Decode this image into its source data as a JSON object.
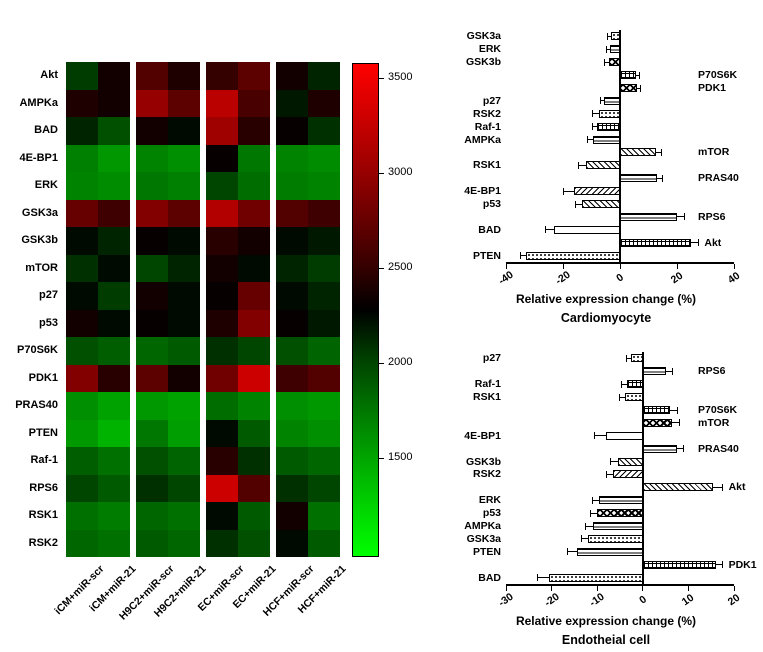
{
  "colors": {
    "background": "#ffffff",
    "axis": "#000000",
    "heat_low": "#2bd424",
    "heat_mid": "#000000",
    "heat_high": "#ff2a12"
  },
  "chart_data": [
    {
      "type": "heatmap",
      "rows": [
        "Akt",
        "AMPKa",
        "BAD",
        "4E-BP1",
        "ERK",
        "GSK3a",
        "GSK3b",
        "mTOR",
        "p27",
        "p53",
        "P70S6K",
        "PDK1",
        "PRAS40",
        "PTEN",
        "Raf-1",
        "RPS6",
        "RSK1",
        "RSK2"
      ],
      "columns": [
        "iCM+miR-scr",
        "iCM+miR-21",
        "H9C2+miR-scr",
        "H9C2+miR-21",
        "EC+miR-scr",
        "EC+miR-21",
        "HCF+miR-scr",
        "HCF+miR-21"
      ],
      "values": [
        [
          2050,
          2350,
          2650,
          2400,
          2500,
          2700,
          2350,
          2150
        ],
        [
          2400,
          2350,
          3000,
          2700,
          3200,
          2600,
          2200,
          2400
        ],
        [
          2150,
          1950,
          2350,
          2250,
          3050,
          2450,
          2300,
          2100
        ],
        [
          1700,
          1580,
          1680,
          1620,
          2300,
          1750,
          1680,
          1640
        ],
        [
          1680,
          1640,
          1750,
          1700,
          2000,
          1800,
          1720,
          1680
        ],
        [
          2750,
          2550,
          2900,
          2700,
          3150,
          2800,
          2650,
          2550
        ],
        [
          2250,
          2150,
          2300,
          2250,
          2450,
          2350,
          2250,
          2200
        ],
        [
          2100,
          2250,
          2000,
          2150,
          2350,
          2250,
          2150,
          2050
        ],
        [
          2250,
          2050,
          2350,
          2250,
          2300,
          2750,
          2250,
          2150
        ],
        [
          2350,
          2250,
          2300,
          2250,
          2400,
          2900,
          2300,
          2200
        ],
        [
          1950,
          1880,
          1830,
          1900,
          2100,
          2000,
          1950,
          1850
        ],
        [
          2900,
          2450,
          2700,
          2350,
          2800,
          3300,
          2550,
          2650
        ],
        [
          1620,
          1520,
          1570,
          1520,
          1800,
          1680,
          1620,
          1570
        ],
        [
          1560,
          1420,
          1750,
          1540,
          2250,
          1900,
          1680,
          1620
        ],
        [
          1880,
          1780,
          1950,
          1850,
          2450,
          2100,
          1900,
          1830
        ],
        [
          2000,
          1900,
          2100,
          2000,
          3300,
          2650,
          2100,
          2000
        ],
        [
          1780,
          1720,
          1830,
          1780,
          2250,
          1900,
          2350,
          1780
        ],
        [
          1830,
          1780,
          1900,
          1830,
          2100,
          1950,
          2250,
          1900
        ]
      ],
      "colorbar": {
        "min": 980,
        "max": 3580,
        "ticks": [
          3500,
          3000,
          2500,
          2000,
          1500
        ]
      }
    },
    {
      "type": "bar",
      "orientation": "horizontal",
      "title": "Cardiomyocyte",
      "xlabel": "Relative expression change (%)",
      "xmin": -40,
      "xmax": 40,
      "xticks": [
        -40,
        -20,
        0,
        20,
        40
      ],
      "bars": [
        {
          "label": "GSK3a",
          "value": -3,
          "err": 1.5,
          "pattern": "dots"
        },
        {
          "label": "ERK",
          "value": -3.5,
          "err": 1.2,
          "pattern": "hlines"
        },
        {
          "label": "GSK3b",
          "value": -4,
          "err": 1.5,
          "pattern": "checker"
        },
        {
          "label": "P70S6K",
          "value": 5.5,
          "err": 1.5,
          "pattern": "cross"
        },
        {
          "label": "PDK1",
          "value": 6,
          "err": 1.2,
          "pattern": "checker"
        },
        {
          "label": "p27",
          "value": -5.5,
          "err": 1.5,
          "pattern": "hlines"
        },
        {
          "label": "RSK2",
          "value": -7.5,
          "err": 2,
          "pattern": "dots"
        },
        {
          "label": "Raf-1",
          "value": -8,
          "err": 1.5,
          "pattern": "cross"
        },
        {
          "label": "AMPKa",
          "value": -9.5,
          "err": 2,
          "pattern": "hlines"
        },
        {
          "label": "mTOR",
          "value": 12.5,
          "err": 2,
          "pattern": "diag"
        },
        {
          "label": "RSK1",
          "value": -12,
          "err": 2.5,
          "pattern": "diag"
        },
        {
          "label": "PRAS40",
          "value": 13,
          "err": 2,
          "pattern": "hlines"
        },
        {
          "label": "4E-BP1",
          "value": -16,
          "err": 4,
          "pattern": "diag2"
        },
        {
          "label": "p53",
          "value": -13.5,
          "err": 2,
          "pattern": "diag"
        },
        {
          "label": "RPS6",
          "value": 20,
          "err": 2.5,
          "pattern": "hlines"
        },
        {
          "label": "BAD",
          "value": -23,
          "err": 3,
          "pattern": "blank"
        },
        {
          "label": "Akt",
          "value": 25,
          "err": 2.5,
          "pattern": "cross"
        },
        {
          "label": "PTEN",
          "value": -33,
          "err": 2,
          "pattern": "dots"
        }
      ]
    },
    {
      "type": "bar",
      "orientation": "horizontal",
      "title": "Endotheial cell",
      "xlabel": "Relative expression change (%)",
      "xmin": -30,
      "xmax": 20,
      "xticks": [
        -30,
        -20,
        -10,
        0,
        10,
        20
      ],
      "bars": [
        {
          "label": "p27",
          "value": -2.5,
          "err": 1,
          "pattern": "dots"
        },
        {
          "label": "RPS6",
          "value": 5,
          "err": 1.5,
          "pattern": "hlines"
        },
        {
          "label": "Raf-1",
          "value": -3.5,
          "err": 1.2,
          "pattern": "cross"
        },
        {
          "label": "RSK1",
          "value": -4,
          "err": 1.2,
          "pattern": "dots"
        },
        {
          "label": "P70S6K",
          "value": 6,
          "err": 1.5,
          "pattern": "cross"
        },
        {
          "label": "mTOR",
          "value": 6.5,
          "err": 1.5,
          "pattern": "checker"
        },
        {
          "label": "4E-BP1",
          "value": -8,
          "err": 2.5,
          "pattern": "blank"
        },
        {
          "label": "PRAS40",
          "value": 7.5,
          "err": 1.5,
          "pattern": "hlines"
        },
        {
          "label": "GSK3b",
          "value": -5.5,
          "err": 1.5,
          "pattern": "diag"
        },
        {
          "label": "RSK2",
          "value": -6.5,
          "err": 1.5,
          "pattern": "diag2"
        },
        {
          "label": "Akt",
          "value": 15.5,
          "err": 2,
          "pattern": "diag"
        },
        {
          "label": "ERK",
          "value": -9.5,
          "err": 1.5,
          "pattern": "hlines"
        },
        {
          "label": "p53",
          "value": -10,
          "err": 1.5,
          "pattern": "checker"
        },
        {
          "label": "AMPKa",
          "value": -11,
          "err": 1.5,
          "pattern": "hlines"
        },
        {
          "label": "GSK3a",
          "value": -12,
          "err": 1.5,
          "pattern": "dots"
        },
        {
          "label": "PTEN",
          "value": -14.5,
          "err": 2,
          "pattern": "hlines"
        },
        {
          "label": "PDK1",
          "value": 16,
          "err": 1.5,
          "pattern": "cross"
        },
        {
          "label": "BAD",
          "value": -20.5,
          "err": 2.5,
          "pattern": "dots"
        }
      ]
    }
  ]
}
